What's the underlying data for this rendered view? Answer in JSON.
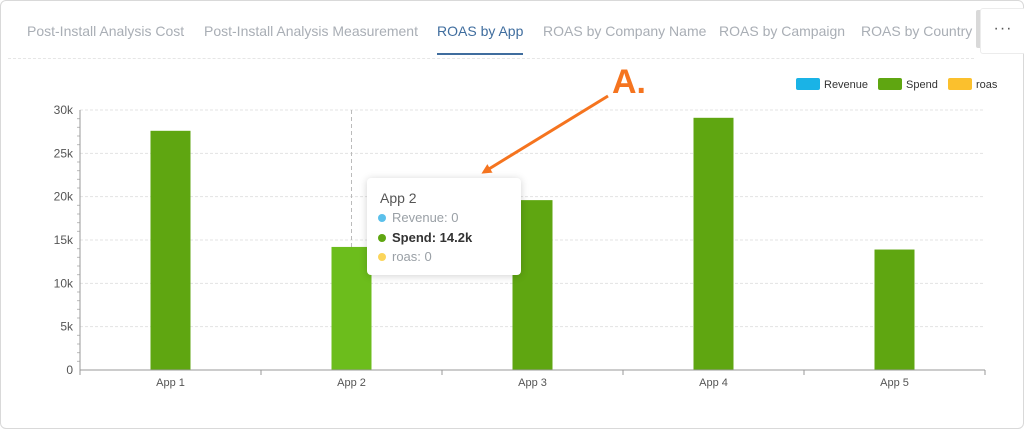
{
  "tabs": [
    {
      "label": "Post-Install Analysis Cost",
      "active": false
    },
    {
      "label": "Post-Install Analysis Measurement",
      "active": false
    },
    {
      "label": "ROAS by App",
      "active": true
    },
    {
      "label": "ROAS by Company Name",
      "active": false
    },
    {
      "label": "ROAS by Campaign",
      "active": false
    },
    {
      "label": "ROAS by Country",
      "active": false
    }
  ],
  "more_label": "···",
  "colors": {
    "revenue": "#1ab3e6",
    "spend": "#5fa611",
    "roas": "#fbc02d",
    "tab_active": "#3f6d9e",
    "annotation": "#f5741f"
  },
  "chart_data": {
    "type": "bar",
    "categories": [
      "App 1",
      "App 2",
      "App 3",
      "App 4",
      "App 5"
    ],
    "series": [
      {
        "name": "Revenue",
        "values": [
          0,
          0,
          0,
          0,
          0
        ]
      },
      {
        "name": "Spend",
        "values": [
          27600,
          14200,
          19600,
          29100,
          13900
        ]
      },
      {
        "name": "roas",
        "values": [
          0,
          0,
          0,
          0,
          0
        ]
      }
    ],
    "ylim": [
      0,
      30000
    ],
    "yticks": [
      0,
      5000,
      10000,
      15000,
      20000,
      25000,
      30000
    ],
    "ytick_labels": [
      "0",
      "5k",
      "10k",
      "15k",
      "20k",
      "25k",
      "30k"
    ],
    "legend_position": "top-right",
    "grid": true
  },
  "tooltip": {
    "title": "App 2",
    "rows": [
      {
        "text": "Revenue: 0",
        "bold": false
      },
      {
        "text": "Spend: 14.2k",
        "bold": true
      },
      {
        "text": "roas: 0",
        "bold": false
      }
    ]
  },
  "annotation": {
    "label": "A."
  }
}
